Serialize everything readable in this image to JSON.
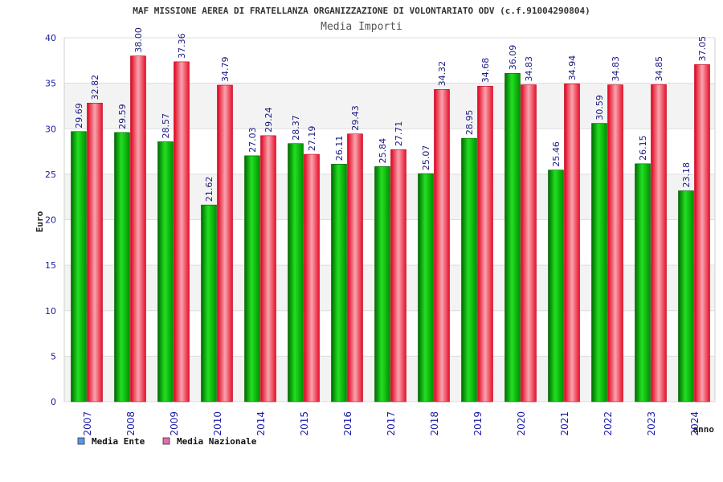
{
  "chart_data": {
    "type": "bar",
    "title": "MAF MISSIONE AEREA DI FRATELLANZA ORGANIZZAZIONE DI VOLONTARIATO ODV (c.f.91004290804)",
    "subtitle": "Media Importi",
    "xlabel": "anno",
    "ylabel": "Euro",
    "ylim": [
      0,
      40
    ],
    "yticks": [
      0,
      5,
      10,
      15,
      20,
      25,
      30,
      35,
      40
    ],
    "grid": true,
    "legend_position": "bottom-left",
    "categories": [
      "2007",
      "2008",
      "2009",
      "2010",
      "2014",
      "2015",
      "2016",
      "2017",
      "2018",
      "2019",
      "2020",
      "2021",
      "2022",
      "2023",
      "2024"
    ],
    "series": [
      {
        "name": "Media Ente",
        "color": "#00b000",
        "legend_color": "#5599ee",
        "values": [
          29.69,
          29.59,
          28.57,
          21.62,
          27.03,
          28.37,
          26.11,
          25.84,
          25.07,
          28.95,
          36.09,
          25.46,
          30.59,
          26.15,
          23.18
        ],
        "labels": [
          "29.69",
          "29.59",
          "28.57",
          "21.62",
          "27.03",
          "28.37",
          "26.11",
          "25.84",
          "25.07",
          "28.95",
          "36.09",
          "25.46",
          "30.59",
          "26.15",
          "23.18"
        ]
      },
      {
        "name": "Media Nazionale",
        "color": "#e8102a",
        "legend_color": "#e070a8",
        "values": [
          32.82,
          38.0,
          37.36,
          34.79,
          29.24,
          27.19,
          29.43,
          27.71,
          34.32,
          34.68,
          34.83,
          34.94,
          34.83,
          34.85,
          37.05
        ],
        "labels": [
          "32.82",
          "38.00",
          "37.36",
          "34.79",
          "29.24",
          "27.19",
          "29.43",
          "27.71",
          "34.32",
          "34.68",
          "34.83",
          "34.94",
          "34.83",
          "34.85",
          "37.05"
        ]
      }
    ]
  }
}
